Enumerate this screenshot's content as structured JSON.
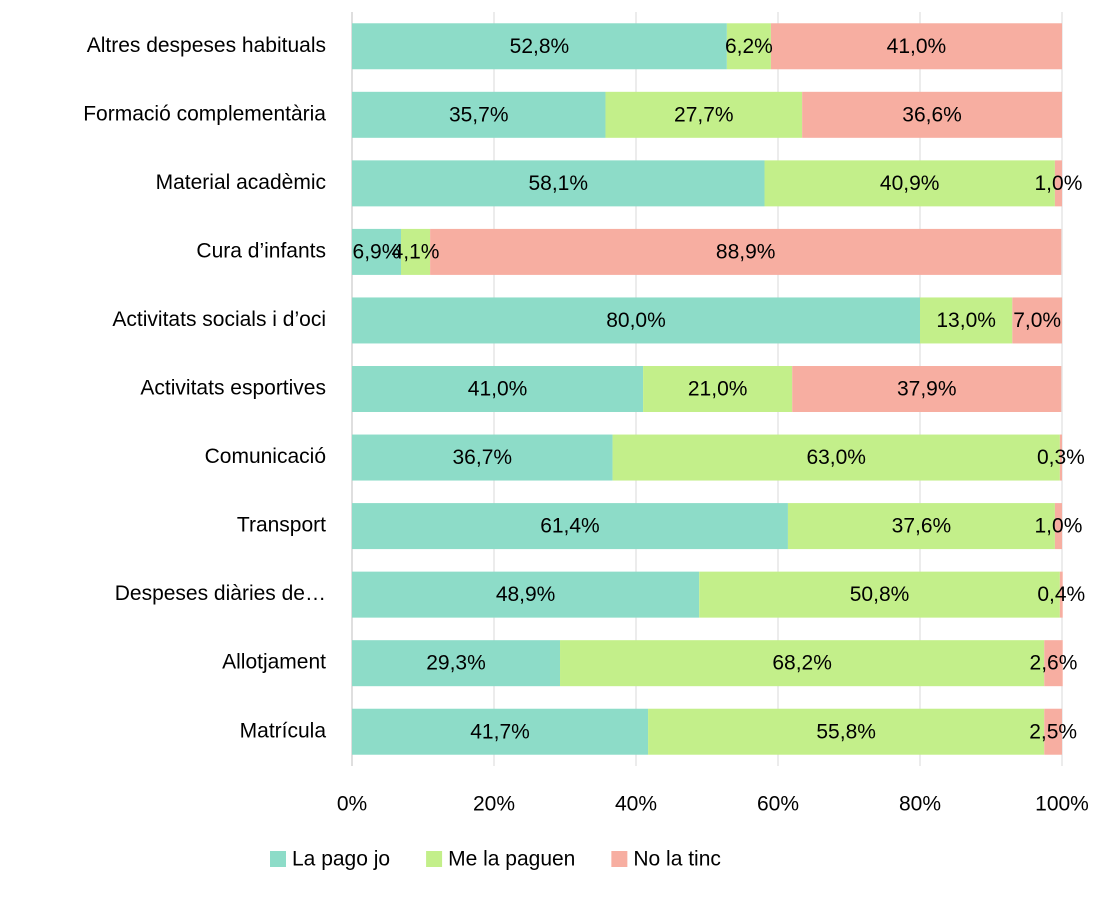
{
  "chart_data": {
    "type": "stacked_bar_horizontal",
    "categories": [
      "Altres despeses habituals",
      "Formació complementària",
      "Material acadèmic",
      "Cura d’infants",
      "Activitats socials i d’oci",
      "Activitats esportives",
      "Comunicació",
      "Transport",
      "Despeses diàries de…",
      "Allotjament",
      "Matrícula"
    ],
    "series": [
      {
        "name": "La pago jo",
        "color": "#8ddcc8",
        "values": [
          52.8,
          35.7,
          58.1,
          6.9,
          80.0,
          41.0,
          36.7,
          61.4,
          48.9,
          29.3,
          41.7
        ],
        "value_labels": [
          "52,8%",
          "35,7%",
          "58,1%",
          "6,9%",
          "80,0%",
          "41,0%",
          "36,7%",
          "61,4%",
          "48,9%",
          "29,3%",
          "41,7%"
        ]
      },
      {
        "name": "Me la paguen",
        "color": "#c3ef8a",
        "values": [
          6.2,
          27.7,
          40.9,
          4.1,
          13.0,
          21.0,
          63.0,
          37.6,
          50.8,
          68.2,
          55.8
        ],
        "value_labels": [
          "6,2%",
          "27,7%",
          "40,9%",
          "4,1%",
          "13,0%",
          "21,0%",
          "63,0%",
          "37,6%",
          "50,8%",
          "68,2%",
          "55,8%"
        ]
      },
      {
        "name": "No la tinc",
        "color": "#f7aea1",
        "values": [
          41.0,
          36.6,
          1.0,
          88.9,
          7.0,
          37.9,
          0.3,
          1.0,
          0.4,
          2.6,
          2.5
        ],
        "value_labels": [
          "41,0%",
          "36,6%",
          "1,0%",
          "88,9%",
          "7,0%",
          "37,9%",
          "0,3%",
          "1,0%",
          "0,4%",
          "2,6%",
          "2,5%"
        ]
      }
    ],
    "xlim": [
      0,
      100
    ],
    "xticks": [
      {
        "value": 0,
        "label": "0%"
      },
      {
        "value": 20,
        "label": "20%"
      },
      {
        "value": 40,
        "label": "40%"
      },
      {
        "value": 60,
        "label": "60%"
      },
      {
        "value": 80,
        "label": "80%"
      },
      {
        "value": 100,
        "label": "100%"
      }
    ],
    "grid": true,
    "legend": "bottom"
  }
}
